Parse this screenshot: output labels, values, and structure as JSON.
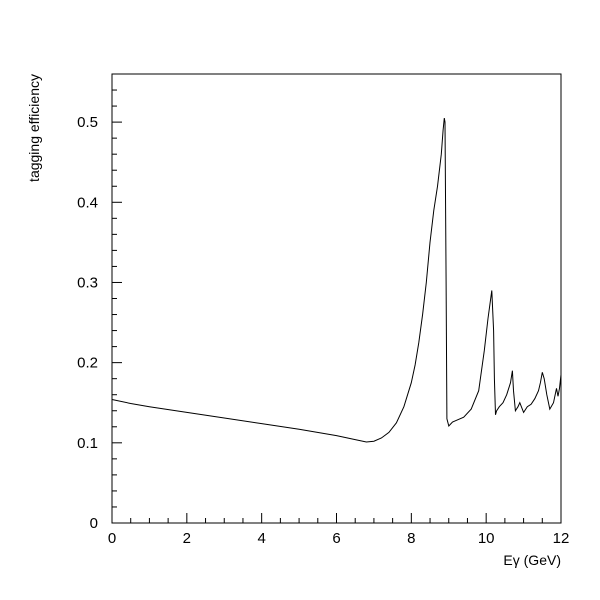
{
  "chart_data": {
    "type": "line",
    "xlabel": "Eγ (GeV)",
    "ylabel": "tagging efficiency",
    "xlim": [
      0,
      12
    ],
    "ylim": [
      0,
      0.56
    ],
    "x_ticks": [
      0,
      2,
      4,
      6,
      8,
      10,
      12
    ],
    "y_ticks": [
      0,
      0.1,
      0.2,
      0.3,
      0.4,
      0.5
    ],
    "x_tick_labels": [
      "0",
      "2",
      "4",
      "6",
      "8",
      "10",
      "12"
    ],
    "y_tick_labels": [
      "0",
      "0.1",
      "0.2",
      "0.3",
      "0.4",
      "0.5"
    ],
    "grid": false,
    "legend": "none",
    "line_color": "#000000",
    "series": [
      {
        "x": [
          0,
          0.5,
          1,
          2,
          3,
          4,
          5,
          6,
          6.5,
          6.8,
          7.0,
          7.2,
          7.4,
          7.6,
          7.8,
          8.0,
          8.1,
          8.2,
          8.3,
          8.4,
          8.5,
          8.6,
          8.7,
          8.8,
          8.85,
          8.88,
          8.9,
          8.93,
          8.95,
          9.0,
          9.1,
          9.2,
          9.4,
          9.6,
          9.8,
          9.95,
          10.05,
          10.15,
          10.2,
          10.22,
          10.25,
          10.28,
          10.35,
          10.45,
          10.55,
          10.65,
          10.7,
          10.73,
          10.78,
          10.85,
          10.9,
          11.0,
          11.1,
          11.2,
          11.3,
          11.4,
          11.45,
          11.5,
          11.55,
          11.62,
          11.7,
          11.8,
          11.88,
          11.92,
          11.96,
          12.0
        ],
        "y": [
          0.154,
          0.149,
          0.145,
          0.138,
          0.131,
          0.124,
          0.117,
          0.109,
          0.104,
          0.101,
          0.102,
          0.106,
          0.113,
          0.125,
          0.145,
          0.175,
          0.197,
          0.225,
          0.26,
          0.3,
          0.35,
          0.39,
          0.42,
          0.46,
          0.49,
          0.505,
          0.5,
          0.3,
          0.13,
          0.121,
          0.126,
          0.128,
          0.132,
          0.142,
          0.165,
          0.215,
          0.255,
          0.29,
          0.24,
          0.18,
          0.135,
          0.14,
          0.145,
          0.15,
          0.16,
          0.175,
          0.19,
          0.165,
          0.14,
          0.145,
          0.15,
          0.138,
          0.145,
          0.148,
          0.155,
          0.165,
          0.175,
          0.188,
          0.18,
          0.16,
          0.142,
          0.15,
          0.168,
          0.158,
          0.168,
          0.185
        ]
      }
    ]
  }
}
